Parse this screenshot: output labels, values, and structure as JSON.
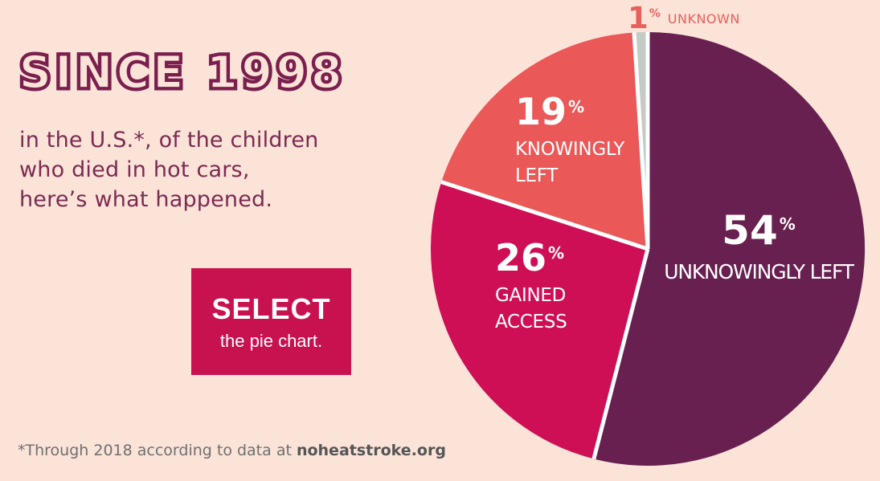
{
  "header": {
    "title": "SINCE 1998",
    "intro": "in the U.S.*, of the children\nwho died in hot cars,\nhere’s what happened."
  },
  "select_button": {
    "title": "SELECT",
    "subtitle": "the pie chart."
  },
  "footer": {
    "prefix": "*Through 2018 according to data at ",
    "source": "noheatstroke.org"
  },
  "colors": {
    "background": "#fbe3d8",
    "heading": "#7a1f4e",
    "body_text": "#7b2a52",
    "button_background": "#c8124f",
    "button_text": "#ffffff",
    "slice_label_text": "#ffffff",
    "callout_text": "#e8605c",
    "footer_text": "#6f6f6f"
  },
  "chart_data": {
    "type": "pie",
    "title": "Since 1998 in the U.S., of the children who died in hot cars, here’s what happened.",
    "units": "percent",
    "start_angle": "12 o’clock",
    "direction": "clockwise",
    "legend": "labels on slices",
    "percent_sign": "%",
    "separator_color": "#ffffff",
    "series": [
      {
        "id": "unknowingly-left",
        "label": "UNKNOWINGLY LEFT",
        "label_display": "UNKNOWINGLY LEFT",
        "value": 54,
        "color": "#67204f"
      },
      {
        "id": "gained-access",
        "label": "GAINED ACCESS",
        "label_display": "GAINED\nACCESS",
        "value": 26,
        "color": "#ce0f55"
      },
      {
        "id": "knowingly-left",
        "label": "KNOWINGLY LEFT",
        "label_display": "KNOWINGLY\nLEFT",
        "value": 19,
        "color": "#ea5858"
      },
      {
        "id": "unknown",
        "label": "UNKNOWN",
        "label_display": "UNKNOWN",
        "value": 1,
        "color": "#c4cac4"
      }
    ]
  }
}
